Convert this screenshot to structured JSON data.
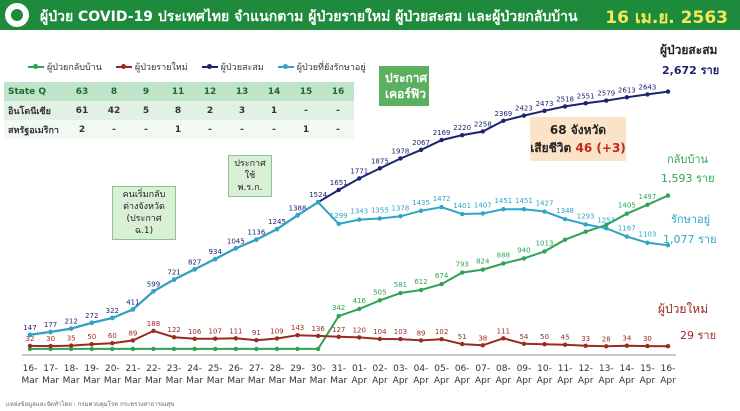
{
  "header": {
    "title": "ผู้ป่วย COVID-19 ประเทศไทย จำแนกตาม ผู้ป่วยรายใหม่ ผู้ป่วยสะสม และผู้ป่วยกลับบ้าน",
    "date": "16 เม.ย. 2563",
    "bg_color": "#1e8a3c",
    "logo_icon": "ministry-seal-icon"
  },
  "legend": {
    "items": [
      {
        "label": "ผู้ป่วยกลับบ้าน",
        "color": "#2ea355"
      },
      {
        "label": "ผู้ป่วยรายใหม่",
        "color": "#9b2a1f"
      },
      {
        "label": "ผู้ป่วยสะสม",
        "color": "#1c2370"
      },
      {
        "label": "ผู้ป่วยที่ยังรักษาอยู่",
        "color": "#2da5c6"
      }
    ]
  },
  "table": {
    "rows": [
      {
        "label": "State Q",
        "cells": [
          "63",
          "8",
          "9",
          "11",
          "12",
          "13",
          "14",
          "15",
          "16"
        ]
      },
      {
        "label": "อินโดนีเซีย",
        "cells": [
          "61",
          "42",
          "5",
          "8",
          "2",
          "3",
          "1",
          "-",
          "-"
        ]
      },
      {
        "label": "สหรัฐอเมริกา",
        "cells": [
          "2",
          "-",
          "-",
          "1",
          "-",
          "-",
          "-",
          "1",
          "-"
        ]
      }
    ]
  },
  "callouts": [
    {
      "text": "คนเริ่มกลับ ต่างจังหวัด (ประกาศ ฉ.1)"
    },
    {
      "text": "ประกาศ ใช้ พ.ร.ก."
    },
    {
      "text": "ประกาศ เคอร์ฟิว"
    }
  ],
  "summary_box": {
    "line1": "68 จังหวัด",
    "line2_label": "เสียชีวิต",
    "line2_value": "46 (+3)"
  },
  "right_labels": {
    "cumulative_title": "ผู้ป่วยสะสม",
    "cumulative_value": "2,672 ราย",
    "recovered_title": "กลับบ้าน",
    "recovered_value": "1,593 ราย",
    "treating_title": "รักษาอยู่",
    "treating_value": "1,077 ราย",
    "new_title": "ผู้ป่วยใหม่",
    "new_value": "29 ราย"
  },
  "footer": "แหล่งข้อมูลและจัดทำโดย : กรมควบคุมโรค กระทรวงสาธารณสุข",
  "chart_data": {
    "type": "line",
    "categories": [
      "16-Mar",
      "17-Mar",
      "18-Mar",
      "19-Mar",
      "20-Mar",
      "21-Mar",
      "22-Mar",
      "23-Mar",
      "24-Mar",
      "25-Mar",
      "26-Mar",
      "27-Mar",
      "28-Mar",
      "29-Mar",
      "30-Mar",
      "31-Mar",
      "01-Apr",
      "02-Apr",
      "03-Apr",
      "04-Apr",
      "05-Apr",
      "06-Apr",
      "07-Apr",
      "08-Apr",
      "09-Apr",
      "10-Apr",
      "11-Apr",
      "12-Apr",
      "13-Apr",
      "14-Apr",
      "15-Apr",
      "16-Apr"
    ],
    "ylim": [
      0,
      3000
    ],
    "series": [
      {
        "name": "ผู้ป่วยกลับบ้าน",
        "color": "#2ea355",
        "values": [
          1,
          1,
          1,
          1,
          1,
          1,
          1,
          1,
          1,
          1,
          1,
          1,
          1,
          1,
          1,
          342,
          416,
          505,
          581,
          612,
          674,
          793,
          824,
          888,
          940,
          1013,
          1135,
          1218,
          1288,
          1405,
          1497,
          1593
        ],
        "labels": [
          "",
          "",
          "",
          "",
          "",
          "",
          "",
          "",
          "",
          "",
          "",
          "",
          "",
          "",
          "",
          "342",
          "416",
          "505",
          "581",
          "612",
          "674",
          "793",
          "824",
          "888",
          "940",
          "1013",
          "",
          "",
          "",
          "1405",
          "1497",
          ""
        ]
      },
      {
        "name": "ผู้ป่วยรายใหม่",
        "color": "#9b2a1f",
        "values": [
          32,
          30,
          35,
          50,
          60,
          89,
          188,
          122,
          106,
          107,
          111,
          91,
          109,
          143,
          136,
          127,
          120,
          104,
          103,
          89,
          102,
          51,
          38,
          111,
          54,
          50,
          45,
          33,
          28,
          34,
          30,
          29
        ],
        "labels": [
          "32",
          "30",
          "35",
          "50",
          "60",
          "89",
          "188",
          "122",
          "106",
          "107",
          "111",
          "91",
          "109",
          "143",
          "136",
          "127",
          "120",
          "104",
          "103",
          "89",
          "102",
          "51",
          "38",
          "111",
          "54",
          "50",
          "45",
          "33",
          "28",
          "34",
          "30",
          ""
        ]
      },
      {
        "name": "ผู้ป่วยสะสม",
        "color": "#1c2370",
        "values": [
          147,
          177,
          212,
          272,
          322,
          411,
          599,
          721,
          827,
          934,
          1045,
          1136,
          1245,
          1388,
          1524,
          1651,
          1771,
          1875,
          1978,
          2067,
          2169,
          2220,
          2258,
          2369,
          2423,
          2473,
          2518,
          2551,
          2579,
          2613,
          2643,
          2672
        ],
        "labels": [
          "147",
          "177",
          "212",
          "272",
          "322",
          "411",
          "599",
          "721",
          "827",
          "934",
          "1045",
          "1136",
          "1245",
          "1388",
          "1524",
          "1651",
          "1771",
          "1875",
          "1978",
          "2067",
          "2169",
          "2220",
          "2258",
          "2369",
          "2423",
          "2473",
          "2518",
          "2551",
          "2579",
          "2613",
          "2643",
          ""
        ]
      },
      {
        "name": "ผู้ป่วยที่ยังรักษาอยู่",
        "color": "#2da5c6",
        "values": [
          146,
          176,
          211,
          271,
          321,
          410,
          598,
          720,
          826,
          933,
          1044,
          1135,
          1244,
          1387,
          1523,
          1299,
          1343,
          1355,
          1378,
          1435,
          1472,
          1401,
          1407,
          1451,
          1451,
          1427,
          1348,
          1293,
          1253,
          1167,
          1103,
          1077
        ],
        "labels": [
          "",
          "",
          "",
          "",
          "",
          "",
          "",
          "",
          "",
          "",
          "",
          "",
          "",
          "",
          "",
          "1299",
          "1343",
          "1355",
          "1378",
          "1435",
          "1472",
          "1401",
          "1407",
          "1451",
          "1451",
          "1427",
          "1348",
          "1293",
          "1253",
          "1167",
          "1103",
          ""
        ]
      }
    ]
  }
}
